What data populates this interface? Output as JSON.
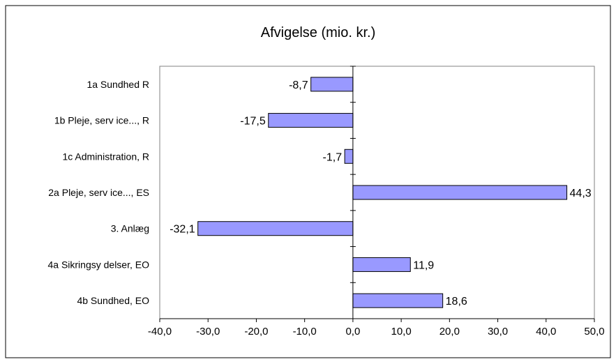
{
  "chart_data": {
    "type": "bar",
    "orientation": "horizontal",
    "title": "Afvigelse (mio. kr.)",
    "xlabel": "",
    "ylabel": "",
    "categories": [
      "1a Sundhed R",
      "1b Pleje, serv ice..., R",
      "1c Administration, R",
      "2a Pleje, serv ice..., ES",
      "3.  Anlæg",
      "4a Sikringsy delser, EO",
      "4b Sundhed, EO"
    ],
    "values": [
      -8.7,
      -17.5,
      -1.7,
      44.3,
      -32.1,
      11.9,
      18.6
    ],
    "data_labels": [
      "-8,7",
      "-17,5",
      "-1,7",
      "44,3",
      "-32,1",
      "11,9",
      "18,6"
    ],
    "xlim": [
      -40,
      50
    ],
    "x_ticks": [
      -40,
      -30,
      -20,
      -10,
      0,
      10,
      20,
      30,
      40,
      50
    ],
    "x_tick_labels": [
      "-40,0",
      "-30,0",
      "-20,0",
      "-10,0",
      "0,0",
      "10,0",
      "20,0",
      "30,0",
      "40,0",
      "50,0"
    ],
    "grid": false,
    "legend": "none",
    "colors": {
      "bar_fill": "#9999ff",
      "bar_stroke": "#000000",
      "frame": "#000000",
      "plot_frame": "#808080"
    }
  }
}
